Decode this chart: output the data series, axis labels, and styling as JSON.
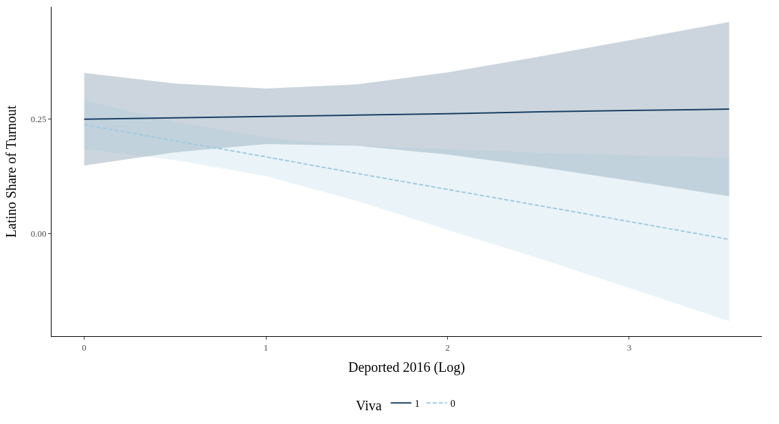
{
  "chart_data": {
    "type": "line",
    "xlabel": "Deported 2016 (Log)",
    "ylabel": "Latino Share of Turnout",
    "legend_title": "Viva",
    "x": [
      0,
      0.5,
      1,
      1.5,
      2,
      2.5,
      3,
      3.55
    ],
    "series": [
      {
        "name": "1",
        "color": "#173f66",
        "line_style": "solid",
        "values": [
          0.249,
          0.252,
          0.255,
          0.258,
          0.261,
          0.265,
          0.268,
          0.271
        ],
        "lower": [
          0.148,
          0.177,
          0.195,
          0.191,
          0.172,
          0.145,
          0.115,
          0.081
        ],
        "upper": [
          0.35,
          0.327,
          0.316,
          0.325,
          0.351,
          0.385,
          0.421,
          0.461
        ]
      },
      {
        "name": "0",
        "color": "#9ecae1",
        "line_style": "dashed",
        "values": [
          0.237,
          0.202,
          0.167,
          0.131,
          0.096,
          0.061,
          0.026,
          -0.013
        ],
        "lower": [
          0.184,
          0.16,
          0.125,
          0.071,
          0.008,
          -0.054,
          -0.119,
          -0.191
        ],
        "upper": [
          0.29,
          0.244,
          0.209,
          0.191,
          0.184,
          0.176,
          0.171,
          0.165
        ]
      }
    ],
    "xlim": [
      -0.18,
      3.73
    ],
    "xticks": [
      0,
      1,
      2,
      3
    ],
    "ylim": [
      -0.224,
      0.494
    ],
    "yticks": [
      {
        "value": 0,
        "label": "0.00"
      },
      0.25
    ],
    "legend": "bottom",
    "marker": "none"
  }
}
